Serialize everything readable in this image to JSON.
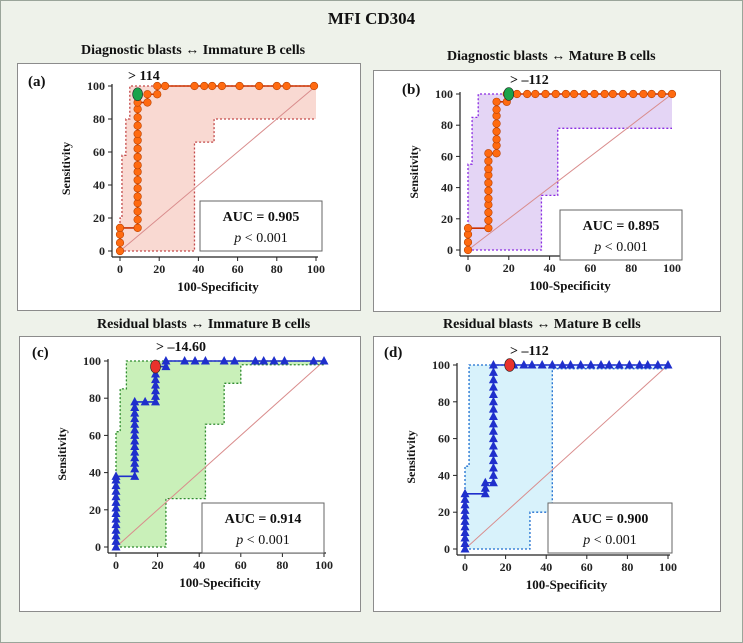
{
  "figure": {
    "title": "MFI CD304"
  },
  "chart_data": [
    {
      "id": "a",
      "type": "line",
      "panel_label": "(a)",
      "title": "Diagnostic blasts ↔ Immature B cells",
      "xlabel": "100-Specificity",
      "ylabel": "Sensitivity",
      "xlim": [
        0,
        100
      ],
      "ylim": [
        0,
        100
      ],
      "xticks": [
        "0",
        "20",
        "40",
        "60",
        "80",
        "100"
      ],
      "yticks": [
        "0",
        "20",
        "40",
        "60",
        "80",
        "100"
      ],
      "criterion_label": "> 114",
      "criterion_point": [
        9,
        95
      ],
      "criterion_color": "#1aa34a",
      "auc_text": "AUC = 0.905",
      "p_prefix": "p",
      "p_rest": " < 0.001",
      "roc_color": "#ff6a10",
      "marker": "circle",
      "band_fill": "#f9d9d2",
      "band_stroke": "#c44a4a",
      "roc": [
        [
          0,
          0
        ],
        [
          0,
          5
        ],
        [
          0,
          10
        ],
        [
          0,
          14
        ],
        [
          9,
          14
        ],
        [
          9,
          19
        ],
        [
          9,
          24
        ],
        [
          9,
          29
        ],
        [
          9,
          33
        ],
        [
          9,
          38
        ],
        [
          9,
          43
        ],
        [
          9,
          48
        ],
        [
          9,
          52
        ],
        [
          9,
          57
        ],
        [
          9,
          62
        ],
        [
          9,
          67
        ],
        [
          9,
          71
        ],
        [
          9,
          76
        ],
        [
          9,
          81
        ],
        [
          9,
          86
        ],
        [
          9,
          90
        ],
        [
          14,
          90
        ],
        [
          14,
          95
        ],
        [
          19,
          95
        ],
        [
          19,
          100
        ],
        [
          23,
          100
        ],
        [
          38,
          100
        ],
        [
          43,
          100
        ],
        [
          47,
          100
        ],
        [
          52,
          100
        ],
        [
          61,
          100
        ],
        [
          71,
          100
        ],
        [
          80,
          100
        ],
        [
          85,
          100
        ],
        [
          99,
          100
        ]
      ],
      "ci_upper": [
        [
          0,
          0
        ],
        [
          0,
          20
        ],
        [
          1,
          20
        ],
        [
          1,
          58
        ],
        [
          3,
          58
        ],
        [
          3,
          80
        ],
        [
          5,
          80
        ],
        [
          5,
          100
        ],
        [
          100,
          100
        ]
      ],
      "ci_lower": [
        [
          0,
          0
        ],
        [
          38,
          0
        ],
        [
          38,
          66
        ],
        [
          48,
          66
        ],
        [
          48,
          80
        ],
        [
          100,
          80
        ]
      ]
    },
    {
      "id": "b",
      "type": "line",
      "panel_label": "(b)",
      "title": "Diagnostic blasts ↔ Mature B cells",
      "xlabel": "100-Specificity",
      "ylabel": "Sensitivity",
      "xlim": [
        0,
        100
      ],
      "ylim": [
        0,
        100
      ],
      "xticks": [
        "0",
        "20",
        "40",
        "60",
        "80",
        "100"
      ],
      "yticks": [
        "0",
        "20",
        "40",
        "60",
        "80",
        "100"
      ],
      "criterion_label": "> –112",
      "criterion_point": [
        20,
        100
      ],
      "criterion_color": "#1aa34a",
      "auc_text": "AUC = 0.895",
      "p_prefix": "p",
      "p_rest": " < 0.001",
      "roc_color": "#ff6a10",
      "marker": "circle",
      "band_fill": "#e4d5f5",
      "band_stroke": "#8a2be2",
      "roc": [
        [
          0,
          0
        ],
        [
          0,
          5
        ],
        [
          0,
          10
        ],
        [
          0,
          14
        ],
        [
          10,
          14
        ],
        [
          10,
          19
        ],
        [
          10,
          24
        ],
        [
          10,
          29
        ],
        [
          10,
          33
        ],
        [
          10,
          38
        ],
        [
          10,
          43
        ],
        [
          10,
          48
        ],
        [
          10,
          52
        ],
        [
          10,
          57
        ],
        [
          10,
          62
        ],
        [
          14,
          62
        ],
        [
          14,
          67
        ],
        [
          14,
          71
        ],
        [
          14,
          76
        ],
        [
          14,
          81
        ],
        [
          14,
          86
        ],
        [
          14,
          90
        ],
        [
          14,
          95
        ],
        [
          19,
          95
        ],
        [
          19,
          100
        ],
        [
          24,
          100
        ],
        [
          29,
          100
        ],
        [
          33,
          100
        ],
        [
          38,
          100
        ],
        [
          43,
          100
        ],
        [
          48,
          100
        ],
        [
          52,
          100
        ],
        [
          57,
          100
        ],
        [
          62,
          100
        ],
        [
          67,
          100
        ],
        [
          71,
          100
        ],
        [
          76,
          100
        ],
        [
          81,
          100
        ],
        [
          86,
          100
        ],
        [
          90,
          100
        ],
        [
          95,
          100
        ],
        [
          100,
          100
        ]
      ],
      "ci_upper": [
        [
          0,
          0
        ],
        [
          0,
          55
        ],
        [
          2,
          55
        ],
        [
          2,
          85
        ],
        [
          5,
          85
        ],
        [
          5,
          100
        ],
        [
          100,
          100
        ]
      ],
      "ci_lower": [
        [
          0,
          0
        ],
        [
          36,
          0
        ],
        [
          36,
          35
        ],
        [
          44,
          35
        ],
        [
          44,
          78
        ],
        [
          100,
          78
        ]
      ]
    },
    {
      "id": "c",
      "type": "line",
      "panel_label": "(c)",
      "title": "Residual blasts ↔ Immature B cells",
      "xlabel": "100-Specificity",
      "ylabel": "Sensitivity",
      "xlim": [
        0,
        100
      ],
      "ylim": [
        0,
        100
      ],
      "xticks": [
        "0",
        "20",
        "40",
        "60",
        "80",
        "100"
      ],
      "yticks": [
        "0",
        "20",
        "40",
        "60",
        "80",
        "100"
      ],
      "criterion_label": "> –14.60",
      "criterion_point": [
        19,
        97
      ],
      "criterion_color": "#e8322c",
      "auc_text": "AUC = 0.914",
      "p_prefix": "p",
      "p_rest": " < 0.001",
      "roc_color": "#1f2fcc",
      "marker": "triangle",
      "band_fill": "#c9f0b9",
      "band_stroke": "#2e8b2e",
      "roc": [
        [
          0,
          0
        ],
        [
          0,
          3
        ],
        [
          0,
          6
        ],
        [
          0,
          9
        ],
        [
          0,
          12
        ],
        [
          0,
          15
        ],
        [
          0,
          18
        ],
        [
          0,
          21
        ],
        [
          0,
          24
        ],
        [
          0,
          27
        ],
        [
          0,
          30
        ],
        [
          0,
          33
        ],
        [
          0,
          36
        ],
        [
          0,
          38
        ],
        [
          9,
          38
        ],
        [
          9,
          42
        ],
        [
          9,
          45
        ],
        [
          9,
          48
        ],
        [
          9,
          51
        ],
        [
          9,
          54
        ],
        [
          9,
          57
        ],
        [
          9,
          60
        ],
        [
          9,
          63
        ],
        [
          9,
          66
        ],
        [
          9,
          69
        ],
        [
          9,
          72
        ],
        [
          9,
          75
        ],
        [
          9,
          78
        ],
        [
          14,
          78
        ],
        [
          19,
          78
        ],
        [
          19,
          81
        ],
        [
          19,
          84
        ],
        [
          19,
          87
        ],
        [
          19,
          90
        ],
        [
          19,
          93
        ],
        [
          19,
          97
        ],
        [
          24,
          97
        ],
        [
          24,
          100
        ],
        [
          33,
          100
        ],
        [
          38,
          100
        ],
        [
          43,
          100
        ],
        [
          52,
          100
        ],
        [
          57,
          100
        ],
        [
          67,
          100
        ],
        [
          71,
          100
        ],
        [
          76,
          100
        ],
        [
          81,
          100
        ],
        [
          95,
          100
        ],
        [
          100,
          100
        ]
      ],
      "ci_upper": [
        [
          0,
          0
        ],
        [
          0,
          62
        ],
        [
          2,
          62
        ],
        [
          2,
          85
        ],
        [
          5,
          85
        ],
        [
          5,
          100
        ],
        [
          100,
          100
        ]
      ],
      "ci_lower": [
        [
          0,
          0
        ],
        [
          24,
          0
        ],
        [
          24,
          26
        ],
        [
          43,
          26
        ],
        [
          43,
          66
        ],
        [
          52,
          66
        ],
        [
          52,
          88
        ],
        [
          60,
          88
        ],
        [
          60,
          98
        ],
        [
          100,
          98
        ]
      ]
    },
    {
      "id": "d",
      "type": "line",
      "panel_label": "(d)",
      "title": "Residual blasts ↔ Mature B cells",
      "xlabel": "100-Specificity",
      "ylabel": "Sensitivity",
      "xlim": [
        0,
        100
      ],
      "ylim": [
        0,
        100
      ],
      "xticks": [
        "0",
        "20",
        "40",
        "60",
        "80",
        "100"
      ],
      "yticks": [
        "0",
        "20",
        "40",
        "60",
        "80",
        "100"
      ],
      "criterion_label": "> –112",
      "criterion_point": [
        22,
        100
      ],
      "criterion_color": "#e8322c",
      "auc_text": "AUC = 0.900",
      "p_prefix": "p",
      "p_rest": " < 0.001",
      "roc_color": "#1f2fcc",
      "marker": "triangle",
      "band_fill": "#d8f2fb",
      "band_stroke": "#1e6fd0",
      "roc": [
        [
          0,
          0
        ],
        [
          0,
          3
        ],
        [
          0,
          6
        ],
        [
          0,
          9
        ],
        [
          0,
          12
        ],
        [
          0,
          15
        ],
        [
          0,
          18
        ],
        [
          0,
          21
        ],
        [
          0,
          24
        ],
        [
          0,
          27
        ],
        [
          0,
          30
        ],
        [
          10,
          30
        ],
        [
          10,
          33
        ],
        [
          10,
          36
        ],
        [
          14,
          36
        ],
        [
          14,
          40
        ],
        [
          14,
          44
        ],
        [
          14,
          48
        ],
        [
          14,
          52
        ],
        [
          14,
          56
        ],
        [
          14,
          60
        ],
        [
          14,
          64
        ],
        [
          14,
          68
        ],
        [
          14,
          72
        ],
        [
          14,
          76
        ],
        [
          14,
          80
        ],
        [
          14,
          84
        ],
        [
          14,
          88
        ],
        [
          14,
          92
        ],
        [
          14,
          96
        ],
        [
          14,
          100
        ],
        [
          24,
          100
        ],
        [
          29,
          100
        ],
        [
          33,
          100
        ],
        [
          38,
          100
        ],
        [
          43,
          100
        ],
        [
          48,
          100
        ],
        [
          52,
          100
        ],
        [
          57,
          100
        ],
        [
          62,
          100
        ],
        [
          67,
          100
        ],
        [
          71,
          100
        ],
        [
          76,
          100
        ],
        [
          81,
          100
        ],
        [
          86,
          100
        ],
        [
          90,
          100
        ],
        [
          95,
          100
        ],
        [
          100,
          100
        ]
      ],
      "ci_upper": [
        [
          0,
          0
        ],
        [
          0,
          45
        ],
        [
          2,
          45
        ],
        [
          2,
          100
        ],
        [
          100,
          100
        ]
      ],
      "ci_lower": [
        [
          0,
          0
        ],
        [
          32,
          0
        ],
        [
          32,
          20
        ],
        [
          43,
          20
        ],
        [
          43,
          98
        ],
        [
          100,
          98
        ]
      ]
    }
  ]
}
